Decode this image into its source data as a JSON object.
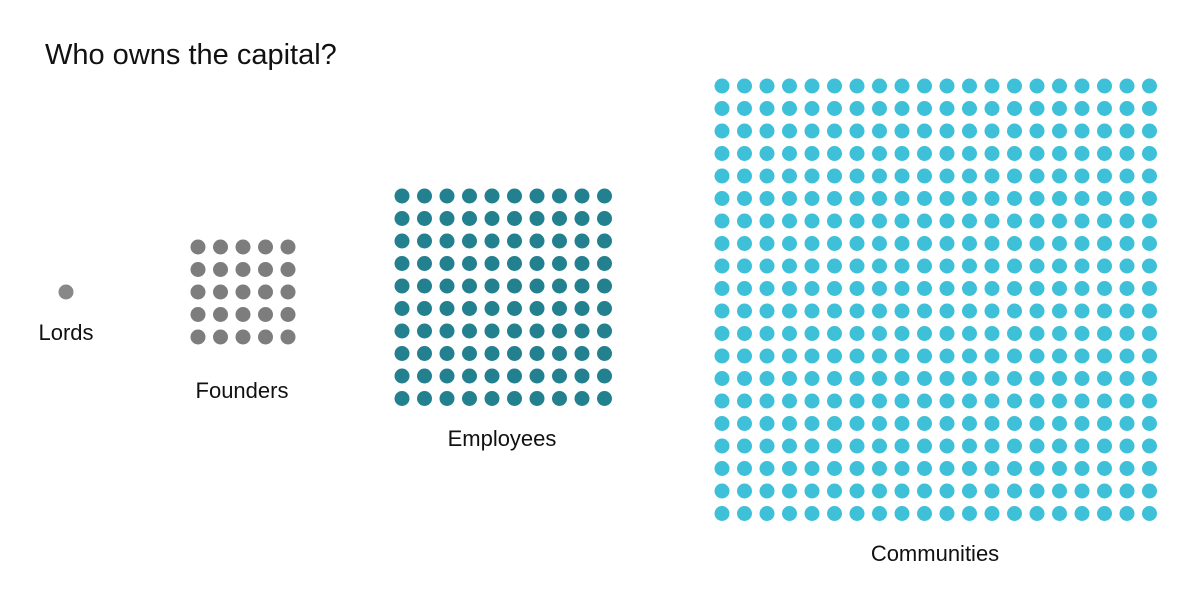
{
  "chart_data": {
    "type": "dot-matrix",
    "title": "Who owns the capital?",
    "categories": [
      "Lords",
      "Founders",
      "Employees",
      "Communities"
    ],
    "values": [
      1,
      25,
      100,
      400
    ],
    "groups": [
      {
        "label": "Lords",
        "count": 1,
        "rows": 1,
        "cols": 1,
        "color": "#888888"
      },
      {
        "label": "Founders",
        "count": 25,
        "rows": 5,
        "cols": 5,
        "color": "#7d7d7d"
      },
      {
        "label": "Employees",
        "count": 100,
        "rows": 10,
        "cols": 10,
        "color": "#23808f"
      },
      {
        "label": "Communities",
        "count": 400,
        "rows": 20,
        "cols": 20,
        "color": "#3ec0d8"
      }
    ],
    "legend": "none",
    "grid": false
  }
}
